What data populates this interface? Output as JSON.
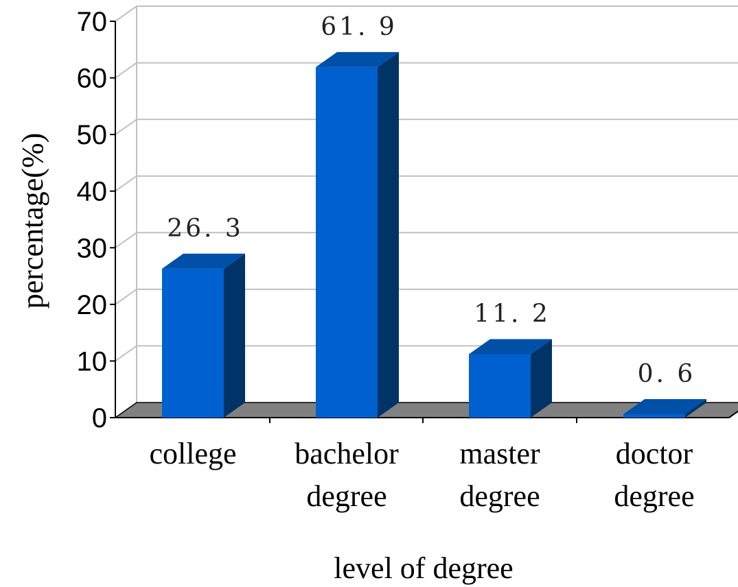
{
  "chart_data": {
    "type": "bar",
    "categories": [
      [
        "college"
      ],
      [
        "bachelor",
        "degree"
      ],
      [
        "master",
        "degree"
      ],
      [
        "doctor",
        "degree"
      ]
    ],
    "values": [
      26.3,
      61.9,
      11.2,
      0.6
    ],
    "data_labels": [
      "26. 3",
      "61. 9",
      "11. 2",
      "0. 6"
    ],
    "ylabel": "percentage(%)",
    "xlabel": "level of degree",
    "ylim": [
      0,
      70
    ],
    "yticks": [
      "0",
      "10",
      "20",
      "30",
      "40",
      "50",
      "60",
      "70"
    ],
    "grid": true,
    "style": "3d",
    "colors": {
      "bar_front": "#0060D0",
      "bar_top": "#0050A8",
      "bar_side": "#003366",
      "floor": "#808080",
      "grid": "#c0c0c0"
    }
  }
}
